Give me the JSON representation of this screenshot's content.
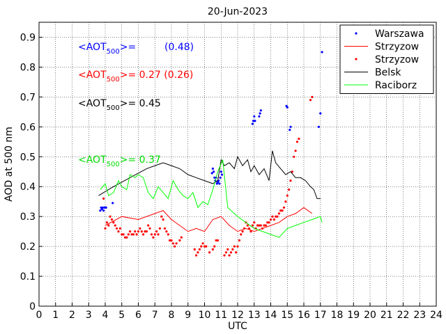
{
  "chart_data": {
    "type": "line",
    "title": "20-Jun-2023",
    "xlabel": "UTC",
    "ylabel": "AOD at 500 nm",
    "xlim": [
      0,
      24
    ],
    "ylim": [
      0,
      0.95
    ],
    "xticks": [
      0,
      1,
      2,
      3,
      4,
      5,
      6,
      7,
      8,
      9,
      10,
      11,
      12,
      13,
      14,
      15,
      16,
      17,
      18,
      19,
      20,
      21,
      22,
      23,
      24
    ],
    "yticks": [
      0,
      0.1,
      0.2,
      0.3,
      0.4,
      0.5,
      0.6,
      0.7,
      0.8,
      0.9
    ],
    "grid": true,
    "legend_position": "top-right",
    "colors": {
      "Warszawa": "#0000ff",
      "Strzyzow": "#ff0000",
      "Belsk": "#000000",
      "Raciborz": "#00ff00"
    },
    "annotations": [
      {
        "prefix": "<AOT",
        "sub": "500",
        "suffix": ">=",
        "value": "(0.48)",
        "color": "#0000ff"
      },
      {
        "prefix": "<AOT",
        "sub": "500",
        "suffix": ">= 0.27 (0.26)",
        "value": "",
        "color": "#ff0000"
      },
      {
        "prefix": "<AOT",
        "sub": "500",
        "suffix": ">= 0.45",
        "value": "",
        "color": "#000000"
      },
      {
        "prefix": "<AOT",
        "sub": "500",
        "suffix": ">= 0.37",
        "value": "",
        "color": "#00dd00"
      }
    ],
    "series": [
      {
        "name": "Warszawa",
        "style": "points",
        "color": "#0000ff",
        "x": [
          3.7,
          3.75,
          3.8,
          3.85,
          3.9,
          3.95,
          4.0,
          4.05,
          4.45,
          10.45,
          10.5,
          10.55,
          10.6,
          10.65,
          10.7,
          10.75,
          10.8,
          10.85,
          10.9,
          10.95,
          11.0,
          11.05,
          12.9,
          12.95,
          13.0,
          13.05,
          13.3,
          13.35,
          13.4,
          14.95,
          15.0,
          15.15,
          15.2,
          16.9,
          17.0,
          17.1
        ],
        "y": [
          0.32,
          0.33,
          0.325,
          0.33,
          0.32,
          0.33,
          0.33,
          0.33,
          0.345,
          0.445,
          0.46,
          0.45,
          0.43,
          0.42,
          0.43,
          0.41,
          0.415,
          0.42,
          0.41,
          0.43,
          0.45,
          0.44,
          0.61,
          0.62,
          0.635,
          0.62,
          0.635,
          0.645,
          0.655,
          0.67,
          0.665,
          0.59,
          0.6,
          0.6,
          0.645,
          0.85
        ]
      },
      {
        "name": "Strzyzow",
        "style": "line",
        "color": "#ff0000",
        "x": [
          4.0,
          5.0,
          6.0,
          7.0,
          7.5,
          8.0,
          8.5,
          9.0,
          9.5,
          10.0,
          10.5,
          11.0,
          11.5,
          12.0,
          12.5,
          13.0,
          13.5,
          14.0,
          14.5,
          15.0,
          15.5,
          16.0,
          16.5
        ],
        "y": [
          0.27,
          0.3,
          0.29,
          0.31,
          0.32,
          0.29,
          0.27,
          0.25,
          0.26,
          0.25,
          0.29,
          0.3,
          0.27,
          0.25,
          0.26,
          0.25,
          0.26,
          0.27,
          0.28,
          0.3,
          0.31,
          0.33,
          0.31
        ]
      },
      {
        "name": "Strzyzow",
        "style": "points",
        "color": "#ff0000",
        "x": [
          3.9,
          4.0,
          4.1,
          4.2,
          4.3,
          4.4,
          4.5,
          4.6,
          4.7,
          4.8,
          4.9,
          5.0,
          5.1,
          5.2,
          5.3,
          5.4,
          5.5,
          5.6,
          5.7,
          5.8,
          5.9,
          6.0,
          6.1,
          6.2,
          6.3,
          6.4,
          6.5,
          6.6,
          6.7,
          6.8,
          6.9,
          7.0,
          7.1,
          7.2,
          7.3,
          7.4,
          7.5,
          7.6,
          7.7,
          7.8,
          7.9,
          8.0,
          8.1,
          8.2,
          8.3,
          8.5,
          8.6,
          9.4,
          9.5,
          9.6,
          9.7,
          9.8,
          9.9,
          10.0,
          10.1,
          10.3,
          10.5,
          10.6,
          10.7,
          10.8,
          11.2,
          11.3,
          11.4,
          11.5,
          11.6,
          11.7,
          11.8,
          11.9,
          12.0,
          12.1,
          12.2,
          12.3,
          12.4,
          12.5,
          12.6,
          12.7,
          12.8,
          12.9,
          13.0,
          13.1,
          13.2,
          13.3,
          13.4,
          13.5,
          13.6,
          13.7,
          13.8,
          13.9,
          14.0,
          14.1,
          14.2,
          14.3,
          14.4,
          14.5,
          14.6,
          14.7,
          14.8,
          14.9,
          15.0,
          15.1,
          15.2,
          15.3,
          15.4,
          15.5,
          15.6,
          15.7,
          16.4,
          16.5
        ],
        "y": [
          0.36,
          0.26,
          0.28,
          0.27,
          0.3,
          0.29,
          0.28,
          0.27,
          0.26,
          0.25,
          0.26,
          0.24,
          0.24,
          0.23,
          0.23,
          0.24,
          0.25,
          0.24,
          0.24,
          0.25,
          0.24,
          0.25,
          0.26,
          0.25,
          0.24,
          0.25,
          0.25,
          0.27,
          0.26,
          0.24,
          0.23,
          0.24,
          0.25,
          0.24,
          0.26,
          0.3,
          0.29,
          0.26,
          0.25,
          0.24,
          0.22,
          0.22,
          0.21,
          0.2,
          0.21,
          0.22,
          0.23,
          0.19,
          0.17,
          0.18,
          0.19,
          0.2,
          0.21,
          0.2,
          0.2,
          0.18,
          0.19,
          0.2,
          0.22,
          0.22,
          0.17,
          0.18,
          0.19,
          0.17,
          0.18,
          0.19,
          0.2,
          0.18,
          0.2,
          0.22,
          0.24,
          0.25,
          0.26,
          0.28,
          0.27,
          0.26,
          0.25,
          0.27,
          0.28,
          0.26,
          0.27,
          0.27,
          0.27,
          0.26,
          0.27,
          0.27,
          0.28,
          0.28,
          0.29,
          0.3,
          0.29,
          0.3,
          0.3,
          0.31,
          0.32,
          0.32,
          0.33,
          0.35,
          0.37,
          0.39,
          0.42,
          0.45,
          0.5,
          0.52,
          0.55,
          0.56,
          0.69,
          0.7
        ]
      },
      {
        "name": "Belsk",
        "style": "line",
        "color": "#000000",
        "x": [
          3.6,
          4.5,
          5.5,
          6.5,
          7.0,
          7.5,
          8.0,
          8.5,
          9.0,
          9.5,
          10.0,
          10.5,
          10.8,
          11.0,
          11.2,
          11.5,
          11.8,
          12.0,
          12.3,
          12.6,
          12.8,
          13.0,
          13.3,
          13.6,
          13.9,
          14.1,
          14.3,
          14.6,
          14.9,
          15.2,
          15.5,
          15.8,
          16.1,
          16.4,
          16.6,
          16.8,
          17.0
        ],
        "y": [
          0.37,
          0.4,
          0.43,
          0.46,
          0.47,
          0.48,
          0.47,
          0.46,
          0.44,
          0.43,
          0.42,
          0.41,
          0.42,
          0.49,
          0.47,
          0.48,
          0.46,
          0.5,
          0.47,
          0.49,
          0.45,
          0.47,
          0.44,
          0.46,
          0.42,
          0.52,
          0.48,
          0.46,
          0.44,
          0.45,
          0.43,
          0.43,
          0.42,
          0.4,
          0.39,
          0.36,
          0.36
        ]
      },
      {
        "name": "Raciborz",
        "style": "line",
        "color": "#00ff00",
        "x": [
          3.7,
          4.0,
          4.2,
          4.5,
          4.8,
          5.0,
          5.3,
          5.5,
          5.8,
          6.0,
          6.3,
          6.6,
          6.9,
          7.2,
          7.5,
          7.8,
          8.1,
          8.4,
          8.7,
          9.0,
          9.3,
          9.6,
          9.9,
          10.2,
          10.5,
          10.8,
          11.1,
          11.4,
          12.0,
          12.5,
          13.0,
          13.5,
          14.0,
          14.5,
          15.0,
          15.5,
          16.0,
          16.5,
          17.0,
          17.1
        ],
        "y": [
          0.39,
          0.41,
          0.37,
          0.38,
          0.42,
          0.4,
          0.39,
          0.44,
          0.43,
          0.44,
          0.43,
          0.38,
          0.36,
          0.4,
          0.38,
          0.36,
          0.42,
          0.39,
          0.37,
          0.36,
          0.38,
          0.33,
          0.35,
          0.34,
          0.39,
          0.45,
          0.49,
          0.33,
          0.3,
          0.28,
          0.26,
          0.25,
          0.24,
          0.23,
          0.26,
          0.27,
          0.28,
          0.29,
          0.3,
          0.28
        ]
      }
    ]
  }
}
